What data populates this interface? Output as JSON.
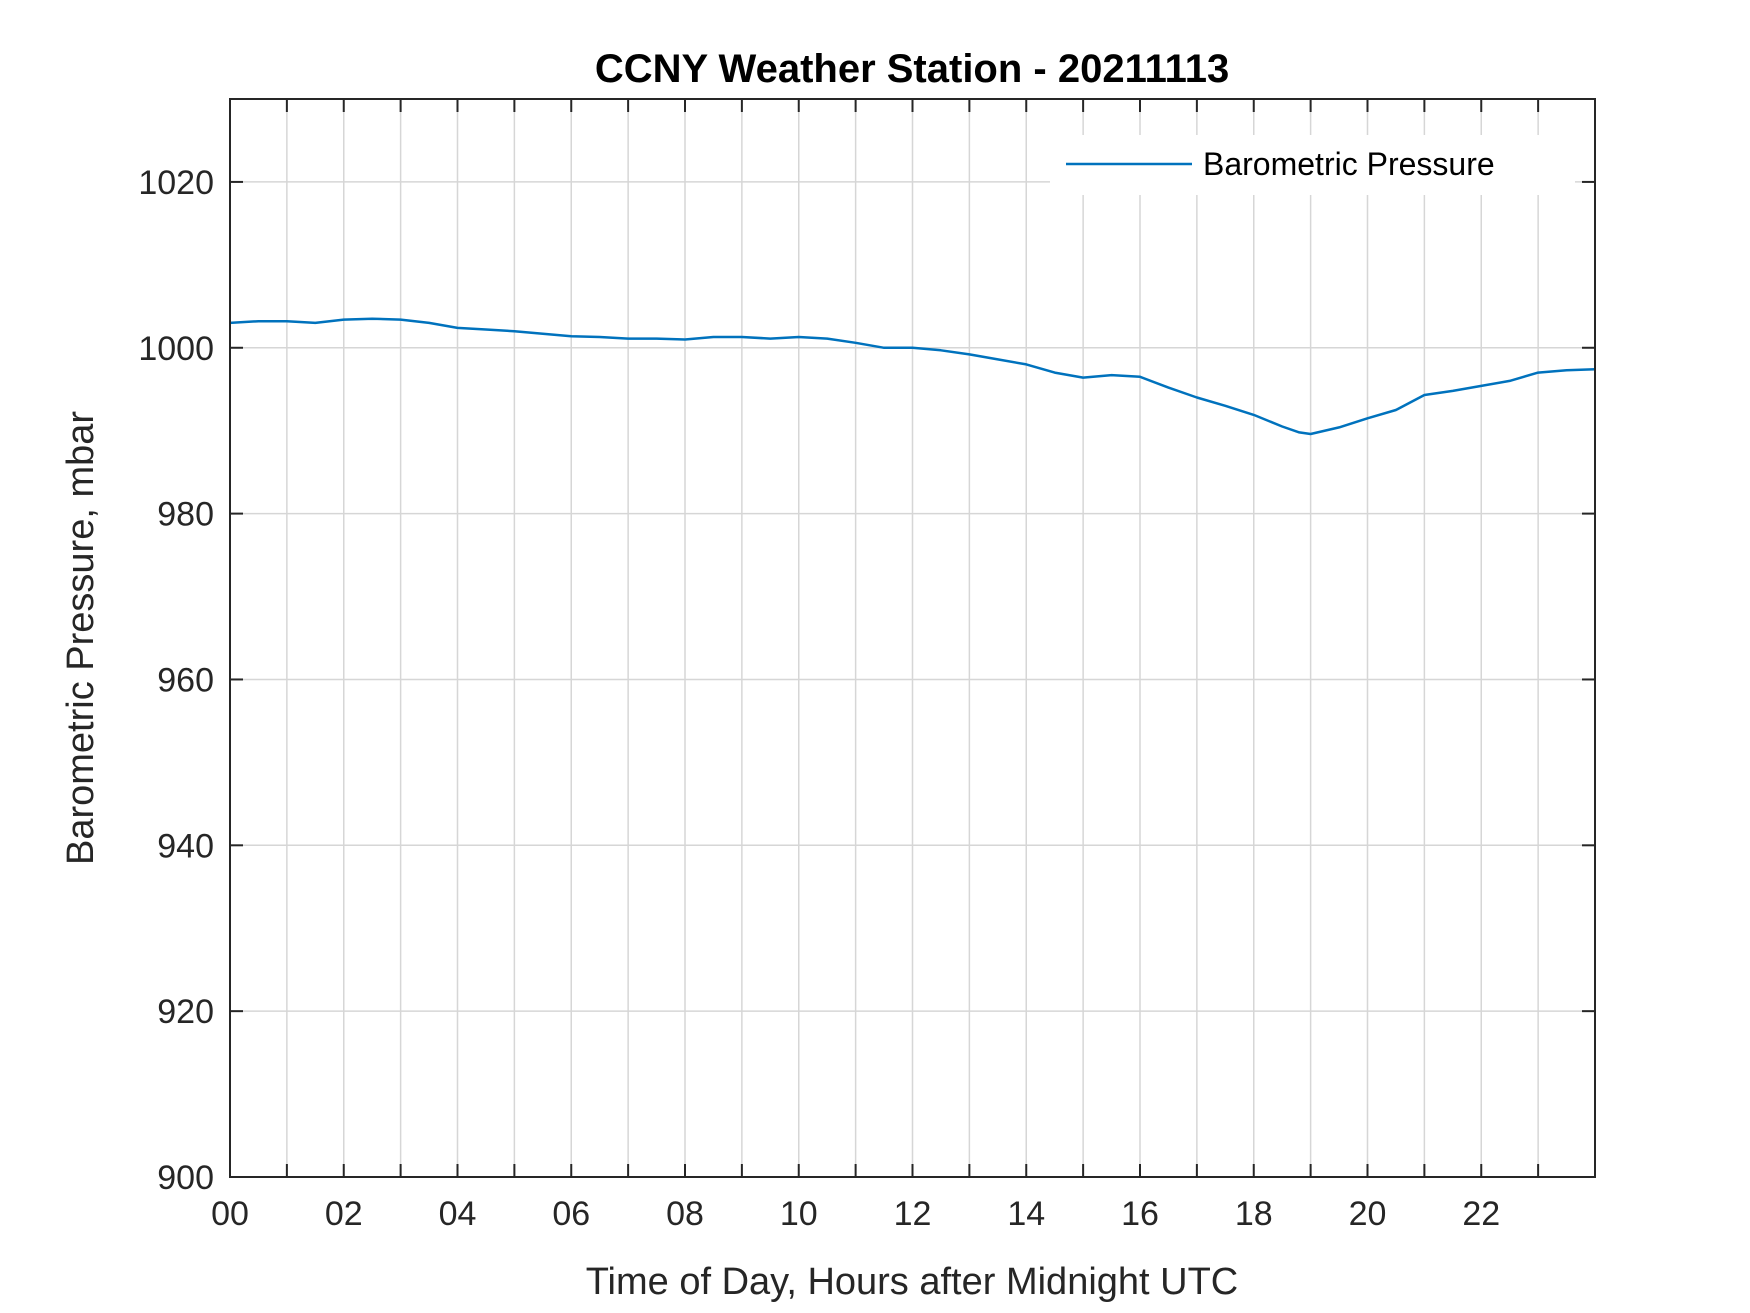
{
  "chart_data": {
    "type": "line",
    "title": "CCNY Weather Station - 20211113",
    "xlabel": "Time of Day, Hours after Midnight UTC",
    "ylabel": "Barometric Pressure, mbar",
    "xlim": [
      0,
      24
    ],
    "ylim": [
      900,
      1030
    ],
    "x_tick_labels": [
      "00",
      "02",
      "04",
      "06",
      "08",
      "10",
      "12",
      "14",
      "16",
      "18",
      "20",
      "22"
    ],
    "y_ticks": [
      900,
      920,
      940,
      960,
      980,
      1000,
      1020
    ],
    "grid": true,
    "legend_position": "top-right",
    "series": [
      {
        "name": "Barometric Pressure",
        "color": "#0072BD",
        "x": [
          0,
          0.5,
          1,
          1.5,
          2,
          2.5,
          3,
          3.5,
          4,
          4.5,
          5,
          5.5,
          6,
          6.5,
          7,
          7.5,
          8,
          8.5,
          9,
          9.5,
          10,
          10.5,
          11,
          11.5,
          12,
          12.5,
          13,
          13.5,
          14,
          14.5,
          15,
          15.5,
          16,
          16.5,
          17,
          17.5,
          18,
          18.5,
          18.8,
          19,
          19.5,
          20,
          20.5,
          21,
          21.5,
          22,
          22.5,
          23,
          23.5,
          24
        ],
        "values": [
          1003.0,
          1003.2,
          1003.2,
          1003.0,
          1003.4,
          1003.5,
          1003.4,
          1003.0,
          1002.4,
          1002.2,
          1002.0,
          1001.7,
          1001.4,
          1001.3,
          1001.1,
          1001.1,
          1001.0,
          1001.3,
          1001.3,
          1001.1,
          1001.3,
          1001.1,
          1000.6,
          1000.0,
          1000.0,
          999.7,
          999.2,
          998.6,
          998.0,
          997.0,
          996.4,
          996.7,
          996.5,
          995.2,
          994.0,
          993.0,
          991.9,
          990.5,
          989.8,
          989.6,
          990.4,
          991.5,
          992.5,
          994.3,
          994.8,
          995.4,
          996.0,
          997.0,
          997.3,
          997.4
        ]
      }
    ]
  }
}
